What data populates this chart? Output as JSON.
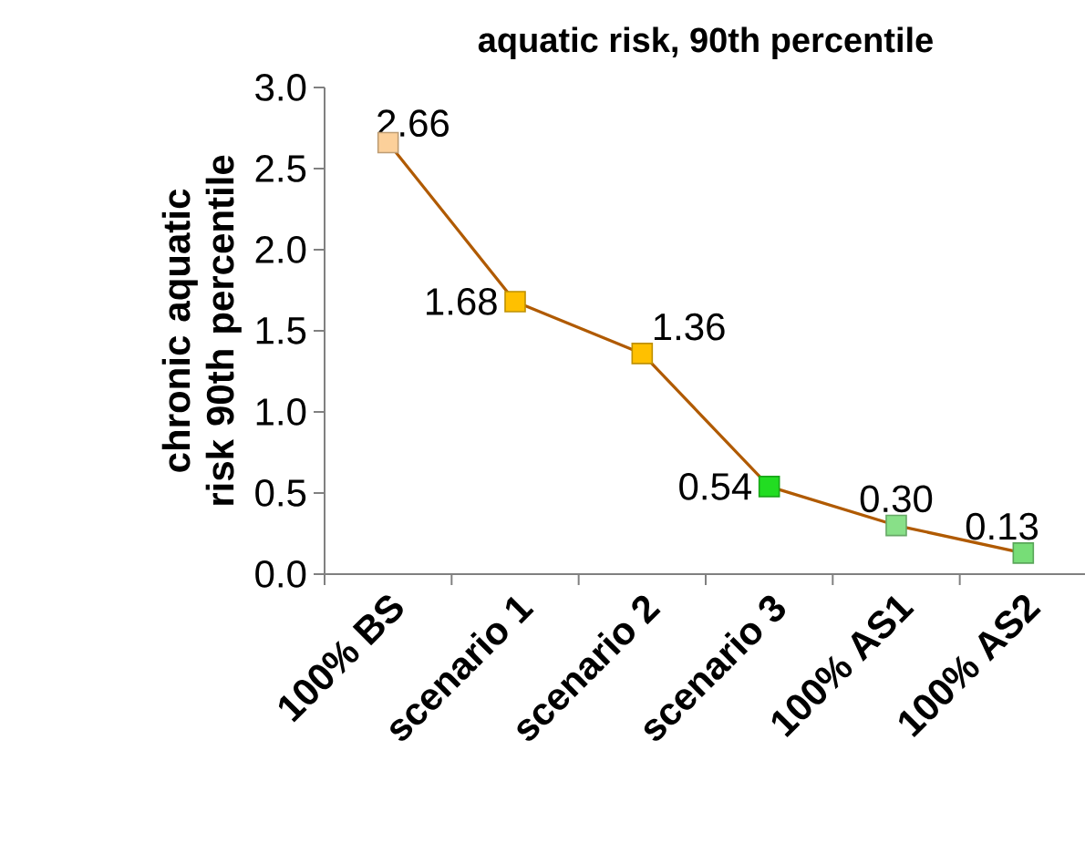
{
  "chart_data": {
    "type": "line",
    "title": "aquatic risk, 90th percentile",
    "ylabel": "chronic aquatic risk 90th percentile",
    "categories": [
      "100% BS",
      "scenario 1",
      "scenario 2",
      "scenario 3",
      "100% AS1",
      "100% AS2"
    ],
    "series": [
      {
        "color": "#b05a00",
        "colors": [
          "#fcd09a",
          "#ffc000",
          "#ffc000",
          "#22dd22",
          "#88e088",
          "#77dd77"
        ],
        "values": [
          2.66,
          1.68,
          1.36,
          0.54,
          0.3,
          0.13
        ],
        "value_labels": [
          "2.66",
          "1.68",
          "1.36",
          "0.54",
          "0.30",
          "0.13"
        ]
      }
    ],
    "ylim": [
      0,
      3
    ],
    "yticks": [
      {
        "value": 0,
        "label": "0.0"
      },
      {
        "value": 0.5,
        "label": "0.5"
      },
      {
        "value": 1,
        "label": "1.0"
      },
      {
        "value": 1.5,
        "label": "1.5"
      },
      {
        "value": 2,
        "label": "2.0"
      },
      {
        "value": 2.5,
        "label": "2.5"
      },
      {
        "value": 3,
        "label": "3.0"
      }
    ],
    "marker": "square"
  }
}
